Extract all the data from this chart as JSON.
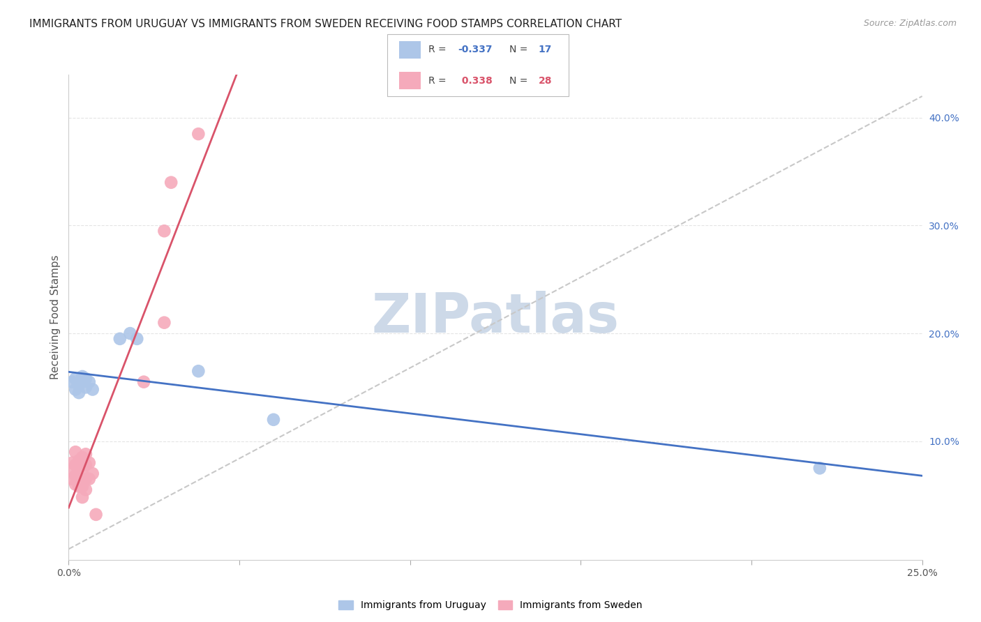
{
  "title": "IMMIGRANTS FROM URUGUAY VS IMMIGRANTS FROM SWEDEN RECEIVING FOOD STAMPS CORRELATION CHART",
  "source": "Source: ZipAtlas.com",
  "ylabel": "Receiving Food Stamps",
  "xlim": [
    0.0,
    0.25
  ],
  "ylim": [
    -0.01,
    0.44
  ],
  "x_ticks": [
    0.0,
    0.05,
    0.1,
    0.15,
    0.2,
    0.25
  ],
  "y_ticks_right": [
    0.1,
    0.2,
    0.3,
    0.4
  ],
  "y_tick_labels_right": [
    "10.0%",
    "20.0%",
    "30.0%",
    "40.0%"
  ],
  "legend_label1": "Immigrants from Uruguay",
  "legend_label2": "Immigrants from Sweden",
  "R1": -0.337,
  "N1": 17,
  "R2": 0.338,
  "N2": 28,
  "blue_color": "#adc6e8",
  "pink_color": "#f5aabb",
  "blue_line_color": "#4472c4",
  "pink_line_color": "#d9536a",
  "dashed_line_color": "#c8c8c8",
  "watermark_color": "#cdd9e8",
  "title_fontsize": 11,
  "source_fontsize": 9,
  "uruguay_points": [
    [
      0.001,
      0.155
    ],
    [
      0.002,
      0.148
    ],
    [
      0.002,
      0.158
    ],
    [
      0.003,
      0.152
    ],
    [
      0.003,
      0.145
    ],
    [
      0.004,
      0.16
    ],
    [
      0.004,
      0.155
    ],
    [
      0.005,
      0.158
    ],
    [
      0.005,
      0.15
    ],
    [
      0.006,
      0.155
    ],
    [
      0.007,
      0.148
    ],
    [
      0.015,
      0.195
    ],
    [
      0.018,
      0.2
    ],
    [
      0.02,
      0.195
    ],
    [
      0.038,
      0.165
    ],
    [
      0.06,
      0.12
    ],
    [
      0.22,
      0.075
    ]
  ],
  "sweden_points": [
    [
      0.001,
      0.08
    ],
    [
      0.001,
      0.072
    ],
    [
      0.001,
      0.065
    ],
    [
      0.002,
      0.09
    ],
    [
      0.002,
      0.078
    ],
    [
      0.002,
      0.068
    ],
    [
      0.002,
      0.06
    ],
    [
      0.003,
      0.082
    ],
    [
      0.003,
      0.075
    ],
    [
      0.003,
      0.062
    ],
    [
      0.003,
      0.058
    ],
    [
      0.004,
      0.085
    ],
    [
      0.004,
      0.07
    ],
    [
      0.004,
      0.058
    ],
    [
      0.004,
      0.048
    ],
    [
      0.005,
      0.088
    ],
    [
      0.005,
      0.078
    ],
    [
      0.005,
      0.065
    ],
    [
      0.005,
      0.055
    ],
    [
      0.006,
      0.08
    ],
    [
      0.006,
      0.065
    ],
    [
      0.007,
      0.07
    ],
    [
      0.008,
      0.032
    ],
    [
      0.022,
      0.155
    ],
    [
      0.028,
      0.21
    ],
    [
      0.028,
      0.295
    ],
    [
      0.03,
      0.34
    ],
    [
      0.038,
      0.385
    ]
  ],
  "background_color": "#ffffff",
  "grid_color": "#e5e5e5"
}
